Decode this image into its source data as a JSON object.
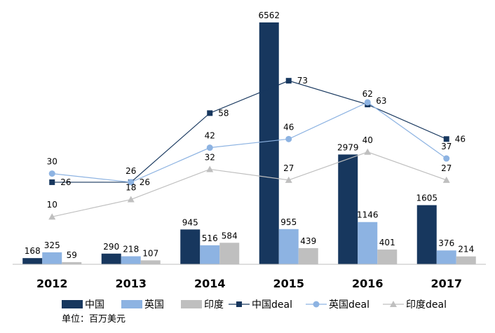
{
  "chart_data": {
    "type": "bar+line",
    "categories": [
      "2012",
      "2013",
      "2014",
      "2015",
      "2016",
      "2017"
    ],
    "bar_series": [
      {
        "name": "中国",
        "color": "#17375e",
        "values": [
          168,
          290,
          945,
          6562,
          2979,
          1605
        ]
      },
      {
        "name": "英国",
        "color": "#8db3e2",
        "values": [
          325,
          218,
          516,
          955,
          1146,
          376
        ]
      },
      {
        "name": "印度",
        "color": "#bfbfbf",
        "values": [
          59,
          107,
          584,
          439,
          401,
          214
        ]
      }
    ],
    "line_series": [
      {
        "name": "中国deal",
        "color": "#17375e",
        "marker": "square",
        "values": [
          26,
          26,
          58,
          73,
          62,
          46
        ]
      },
      {
        "name": "英国deal",
        "color": "#8db3e2",
        "marker": "circle",
        "values": [
          30,
          26,
          42,
          46,
          63,
          37
        ]
      },
      {
        "name": "印度deal",
        "color": "#bfbfbf",
        "marker": "triangle",
        "values": [
          10,
          18,
          32,
          27,
          40,
          27
        ]
      }
    ],
    "unit_note": "单位：百万美元",
    "legend_position": "bottom",
    "grid": false
  }
}
